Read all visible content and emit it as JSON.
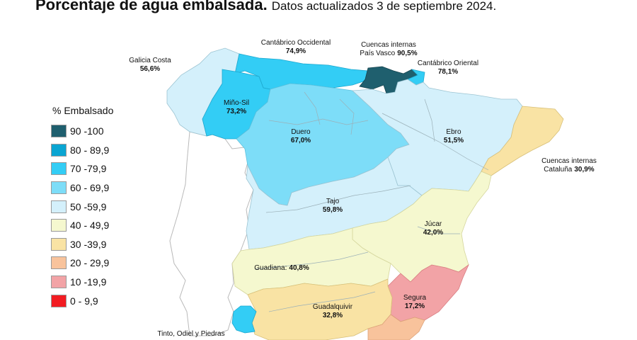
{
  "header": {
    "title": "Porcentaje de agua embalsada.",
    "subtitle": "Datos actualizados 3 de septiembre 2024."
  },
  "legend": {
    "title": "% Embalsado",
    "items": [
      {
        "label": "90 -100",
        "color": "#1f5f6e"
      },
      {
        "label": "80 - 89,9",
        "color": "#0aa5d2"
      },
      {
        "label": "70 -79,9",
        "color": "#33cdf5"
      },
      {
        "label": "60 - 69,9",
        "color": "#7dddf8"
      },
      {
        "label": "50 -59,9",
        "color": "#d4f0fb"
      },
      {
        "label": "40 - 49,9",
        "color": "#f5f8cf"
      },
      {
        "label": "30 -39,9",
        "color": "#f9e3a4"
      },
      {
        "label": "20 - 29,9",
        "color": "#f8c39c"
      },
      {
        "label": "10 -19,9",
        "color": "#f2a3a6"
      },
      {
        "label": "0 - 9,9",
        "color": "#f21c22"
      }
    ]
  },
  "basins": [
    {
      "name": "Galicia Costa",
      "value": "56,6%"
    },
    {
      "name": "Cantábrico Occidental",
      "value": "74,9%"
    },
    {
      "name": "Cuencas internas\nPaís Vasco",
      "value": "90,5%"
    },
    {
      "name": "Cantábrico Oriental",
      "value": "78,1%"
    },
    {
      "name": "Miño-Sil",
      "value": "73,2%"
    },
    {
      "name": "Duero",
      "value": "67,0%"
    },
    {
      "name": "Ebro",
      "value": "51,5%"
    },
    {
      "name": "Cuencas internas\nCataluña",
      "value": "30,9%"
    },
    {
      "name": "Tajo",
      "value": "59,8%"
    },
    {
      "name": "Júcar",
      "value": "42,0%"
    },
    {
      "name": "Guadiana:",
      "value": "40,8%"
    },
    {
      "name": "Segura",
      "value": "17,2%"
    },
    {
      "name": "Guadalquivir",
      "value": "32,8%"
    },
    {
      "name": "Tinto, Odiel y Piedras",
      "value": ""
    }
  ]
}
